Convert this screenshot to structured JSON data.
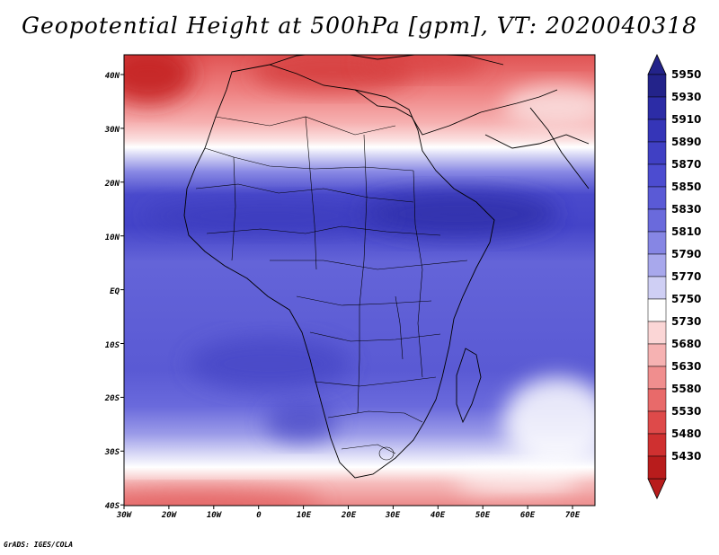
{
  "title": "Geopotential Height at 500hPa [gpm], VT: 2020040318",
  "footer": "GrADS: IGES/COLA",
  "map": {
    "field": "Geopotential Height",
    "level": "500hPa",
    "units": "gpm",
    "valid_time": "2020040318",
    "lon_range": [
      -30,
      75
    ],
    "lat_range": [
      -40,
      45
    ],
    "lon_ticks": [
      "30W",
      "20W",
      "10W",
      "0",
      "10E",
      "20E",
      "30E",
      "40E",
      "50E",
      "60E",
      "70E"
    ],
    "lat_ticks": [
      "40N",
      "30N",
      "20N",
      "10N",
      "EQ",
      "10S",
      "20S",
      "30S",
      "40S"
    ]
  },
  "colorbar": {
    "levels": [
      "5950",
      "5930",
      "5910",
      "5890",
      "5870",
      "5850",
      "5830",
      "5810",
      "5790",
      "5770",
      "5750",
      "5730",
      "5680",
      "5630",
      "5580",
      "5530",
      "5480",
      "5430"
    ],
    "colors": [
      "#23238a",
      "#2c2ca6",
      "#3535b8",
      "#4040c4",
      "#4c4cd0",
      "#5a5ad6",
      "#6a6adc",
      "#8686e4",
      "#a8a8ec",
      "#cfcff4",
      "#ffffff",
      "#fbd6d6",
      "#f6b2b2",
      "#f08e8e",
      "#e86a6a",
      "#de4a4a",
      "#cf3030",
      "#b81c1c"
    ]
  }
}
